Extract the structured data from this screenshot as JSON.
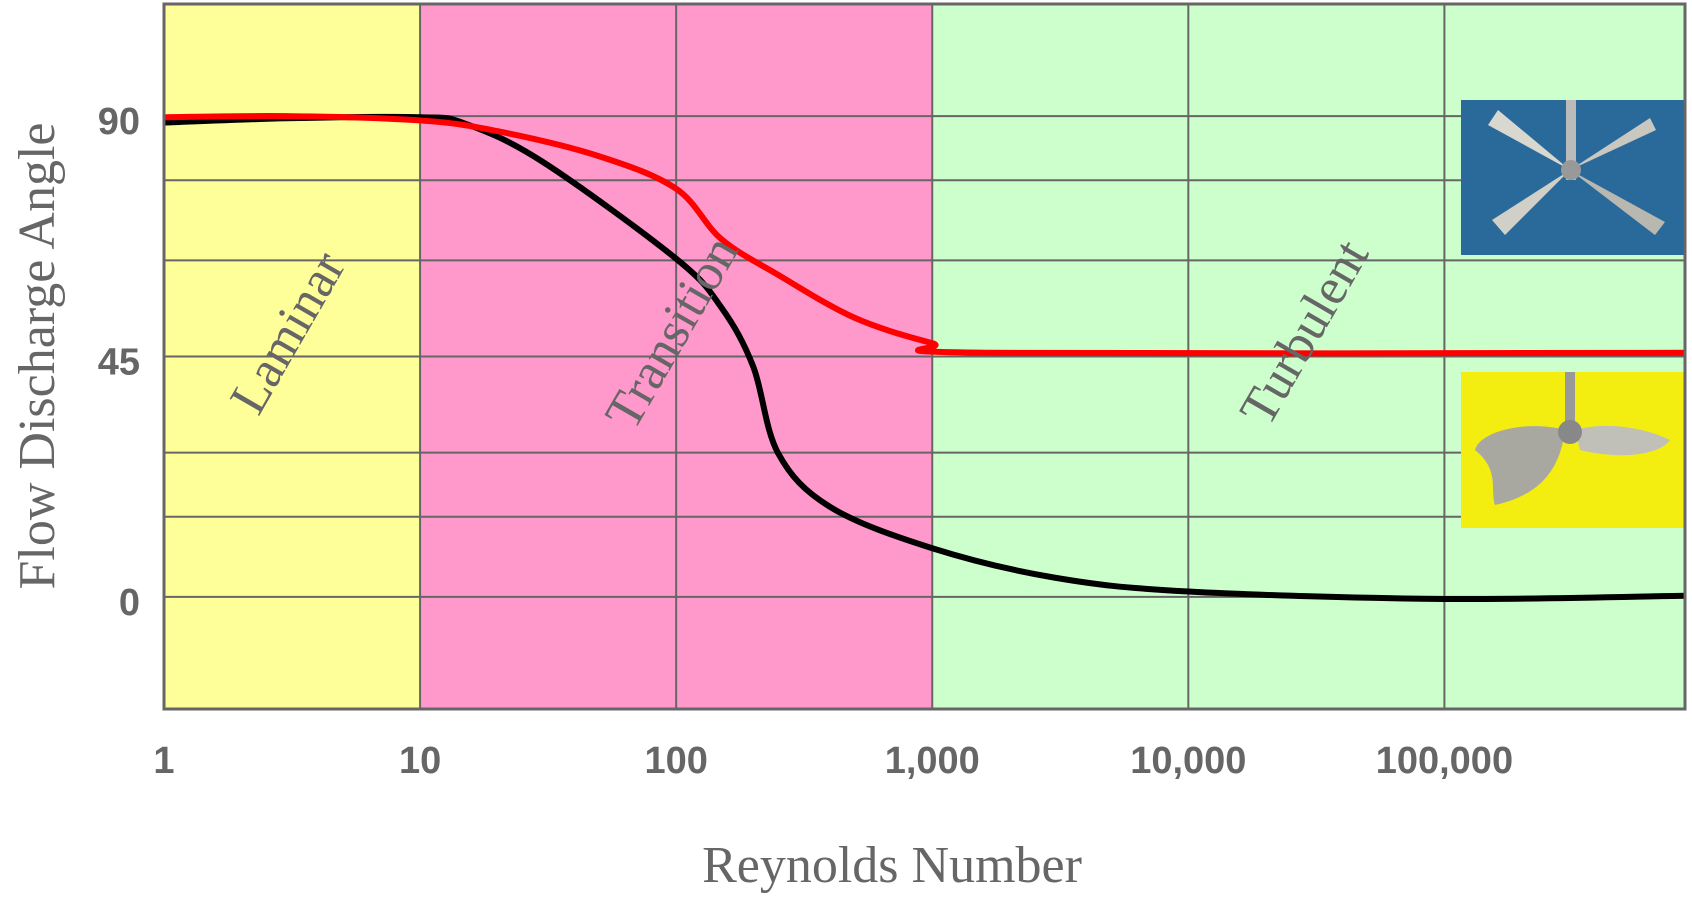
{
  "chart_data": {
    "type": "line",
    "x_label": "Reynolds Number",
    "y_label": "Flow Discharge Angle",
    "xscale": "log",
    "xlim": [
      1,
      870000
    ],
    "xticks": [
      1,
      10,
      100,
      {
        "value": 1000,
        "label": "1,000"
      },
      {
        "value": 10000,
        "label": "10,000"
      },
      {
        "value": 100000,
        "label": "100,000"
      }
    ],
    "ylim": [
      -21,
      111
    ],
    "yticks": [
      0,
      45,
      90
    ],
    "minor_ygrid": [
      15,
      27,
      63,
      78
    ],
    "grid": true,
    "regions": [
      {
        "label": "Laminar",
        "from": 1,
        "to": 10,
        "color": "#ffff99"
      },
      {
        "label": "Transition",
        "from": 10,
        "to": 1000,
        "color": "#ff99cc"
      },
      {
        "label": "Turbulent",
        "from": 1000,
        "to": 870000,
        "color": "#ccffcc"
      }
    ],
    "series": [
      {
        "color": "#000000",
        "x": [
          1,
          3,
          10,
          15,
          30,
          100,
          150,
          200,
          250,
          400,
          1000,
          3000,
          10000,
          100000,
          870000
        ],
        "values": [
          88.8,
          89.6,
          89.8,
          88.6,
          81.5,
          63.3,
          54.2,
          43.1,
          26.9,
          16.8,
          9.1,
          3.6,
          1,
          -0.4,
          0.2
        ]
      },
      {
        "color": "#ff0000",
        "x": [
          1,
          3,
          10,
          20,
          50,
          100,
          150,
          250,
          500,
          1000,
          1600,
          870000
        ],
        "values": [
          89.8,
          90,
          89.2,
          87.2,
          82.5,
          76.4,
          67,
          60.3,
          52.2,
          47.5,
          45.7,
          45.7
        ]
      }
    ]
  }
}
